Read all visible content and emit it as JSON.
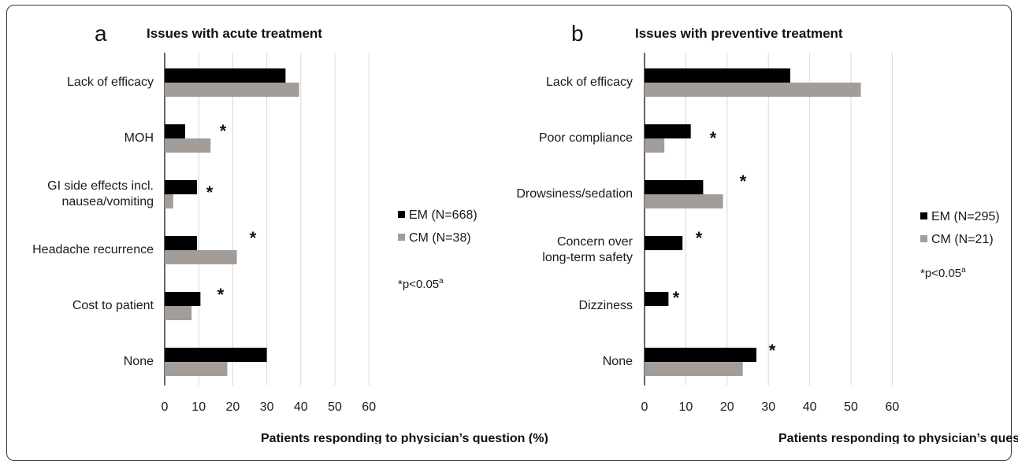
{
  "chart_data": [
    {
      "type": "bar",
      "panel_letter": "a",
      "title": "Issues with acute treatment",
      "xlabel": "Patients responding to physician’s question (%)",
      "xlim": [
        0,
        60
      ],
      "xticks": [
        "0",
        "10",
        "20",
        "30",
        "40",
        "50",
        "60"
      ],
      "categories": [
        "Lack of efficacy",
        "MOH",
        "GI side effects incl.\nnausea/vomiting",
        "Headache recurrence",
        "Cost to patient",
        "None"
      ],
      "series": [
        {
          "name": "EM (N=668)",
          "color": "#000000",
          "values": [
            35.5,
            6,
            9.5,
            9.5,
            10.5,
            30
          ]
        },
        {
          "name": "CM (N=38)",
          "color": "#a39d99",
          "values": [
            39.5,
            13.5,
            2.5,
            21.2,
            7.9,
            18.4
          ]
        }
      ],
      "significant": [
        false,
        true,
        true,
        true,
        true,
        false
      ],
      "significance_marker": "*",
      "note": "*p<0.05",
      "note_sup": "a",
      "legend_position": "right"
    },
    {
      "type": "bar",
      "panel_letter": "b",
      "title": "Issues with preventive treatment",
      "xlabel": "Patients responding to physician’s question (%)",
      "xlim": [
        0,
        60
      ],
      "xticks": [
        "0",
        "10",
        "20",
        "30",
        "40",
        "50",
        "60"
      ],
      "categories": [
        "Lack of efficacy",
        "Poor compliance",
        "Drowsiness/sedation",
        "Concern over\nlong-term safety",
        "Dizziness",
        "None"
      ],
      "series": [
        {
          "name": "EM (N=295)",
          "color": "#000000",
          "values": [
            35.3,
            11.2,
            14.2,
            9.2,
            5.8,
            27.1
          ]
        },
        {
          "name": "CM (N=21)",
          "color": "#a39d99",
          "values": [
            52.4,
            4.8,
            19,
            0,
            0,
            23.8
          ]
        }
      ],
      "significant": [
        false,
        true,
        true,
        true,
        true,
        true
      ],
      "significance_marker": "*",
      "note": "*p<0.05",
      "note_sup": "a",
      "legend_position": "right"
    }
  ]
}
